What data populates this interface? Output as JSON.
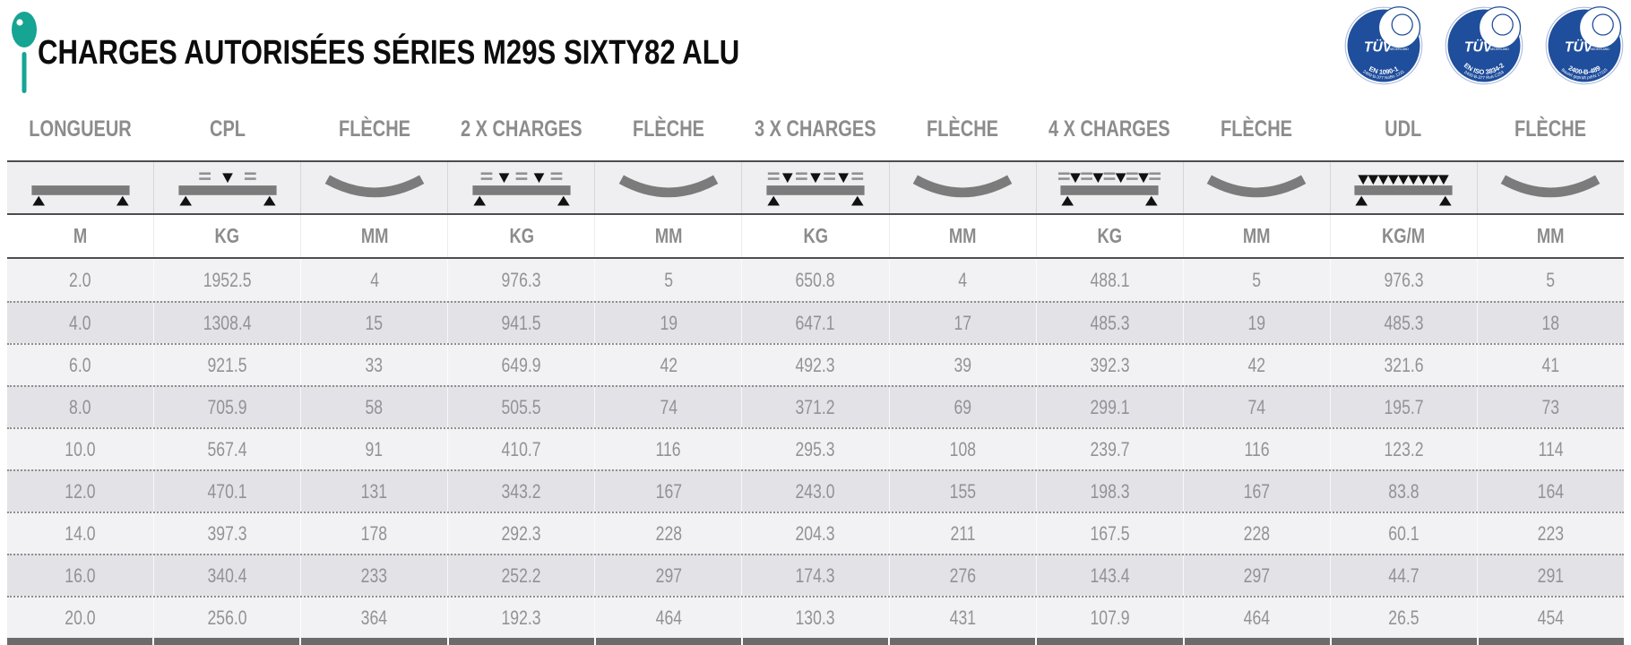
{
  "header": {
    "title": "CHARGES AUTORISÉES SÉRIES M29S SIXTY82 ALU",
    "pin_color": "#16a493",
    "logos": [
      {
        "name": "tuv-nederland-logo",
        "brand": "TÜV",
        "brand_sub": "NEDERLAND",
        "line1": "EN 1090-1",
        "line2": "2400-B-377  NoBo 1231"
      },
      {
        "name": "tuv-nederland-logo",
        "brand": "TÜV",
        "brand_sub": "NEDERLAND",
        "line1": "EN ISO 3834-2",
        "line2": "2400-B-377  RvA C253"
      },
      {
        "name": "tuv-nederland-logo",
        "brand": "TÜV",
        "brand_sub": "NEDERLAND",
        "line1": "2400-B-489",
        "line2": "Bauart geprüft prEN 17115"
      }
    ]
  },
  "table": {
    "columns": [
      {
        "label": "LONGUEUR",
        "unit": "M",
        "diagram": "simple-beam-icon"
      },
      {
        "label": "CPL",
        "unit": "KG",
        "diagram": "beam-1-point-load-icon"
      },
      {
        "label": "FLÈCHE",
        "unit": "MM",
        "diagram": "deflection-curve-icon"
      },
      {
        "label": "2 X CHARGES",
        "unit": "KG",
        "diagram": "beam-2-point-loads-icon"
      },
      {
        "label": "FLÈCHE",
        "unit": "MM",
        "diagram": "deflection-curve-icon"
      },
      {
        "label": "3 X CHARGES",
        "unit": "KG",
        "diagram": "beam-3-point-loads-icon"
      },
      {
        "label": "FLÈCHE",
        "unit": "MM",
        "diagram": "deflection-curve-icon"
      },
      {
        "label": "4 X CHARGES",
        "unit": "KG",
        "diagram": "beam-4-point-loads-icon"
      },
      {
        "label": "FLÈCHE",
        "unit": "MM",
        "diagram": "deflection-curve-icon"
      },
      {
        "label": "UDL",
        "unit": "KG/M",
        "diagram": "beam-udl-icon"
      },
      {
        "label": "FLÈCHE",
        "unit": "MM",
        "diagram": "deflection-curve-icon"
      }
    ],
    "rows": [
      [
        "2.0",
        "1952.5",
        "4",
        "976.3",
        "5",
        "650.8",
        "4",
        "488.1",
        "5",
        "976.3",
        "5"
      ],
      [
        "4.0",
        "1308.4",
        "15",
        "941.5",
        "19",
        "647.1",
        "17",
        "485.3",
        "19",
        "485.3",
        "18"
      ],
      [
        "6.0",
        "921.5",
        "33",
        "649.9",
        "42",
        "492.3",
        "39",
        "392.3",
        "42",
        "321.6",
        "41"
      ],
      [
        "8.0",
        "705.9",
        "58",
        "505.5",
        "74",
        "371.2",
        "69",
        "299.1",
        "74",
        "195.7",
        "73"
      ],
      [
        "10.0",
        "567.4",
        "91",
        "410.7",
        "116",
        "295.3",
        "108",
        "239.7",
        "116",
        "123.2",
        "114"
      ],
      [
        "12.0",
        "470.1",
        "131",
        "343.2",
        "167",
        "243.0",
        "155",
        "198.3",
        "167",
        "83.8",
        "164"
      ],
      [
        "14.0",
        "397.3",
        "178",
        "292.3",
        "228",
        "204.3",
        "211",
        "167.5",
        "228",
        "60.1",
        "223"
      ],
      [
        "16.0",
        "340.4",
        "233",
        "252.2",
        "297",
        "174.3",
        "276",
        "143.4",
        "297",
        "44.7",
        "291"
      ],
      [
        "20.0",
        "256.0",
        "364",
        "192.3",
        "464",
        "130.3",
        "431",
        "107.9",
        "464",
        "26.5",
        "454"
      ]
    ]
  },
  "colors": {
    "accent_teal": "#16a493",
    "logo_blue": "#1f4e9c",
    "header_text": "#8c8c8c",
    "data_text": "#929296",
    "diagram_gray": "#7b7b7b",
    "equals_gray": "#8f8f8f",
    "row_light": "#f2f2f4",
    "row_dark": "#e3e3e7",
    "rule_dark": "#4d4d4d",
    "bottom_bar": "#6b6b6b"
  }
}
